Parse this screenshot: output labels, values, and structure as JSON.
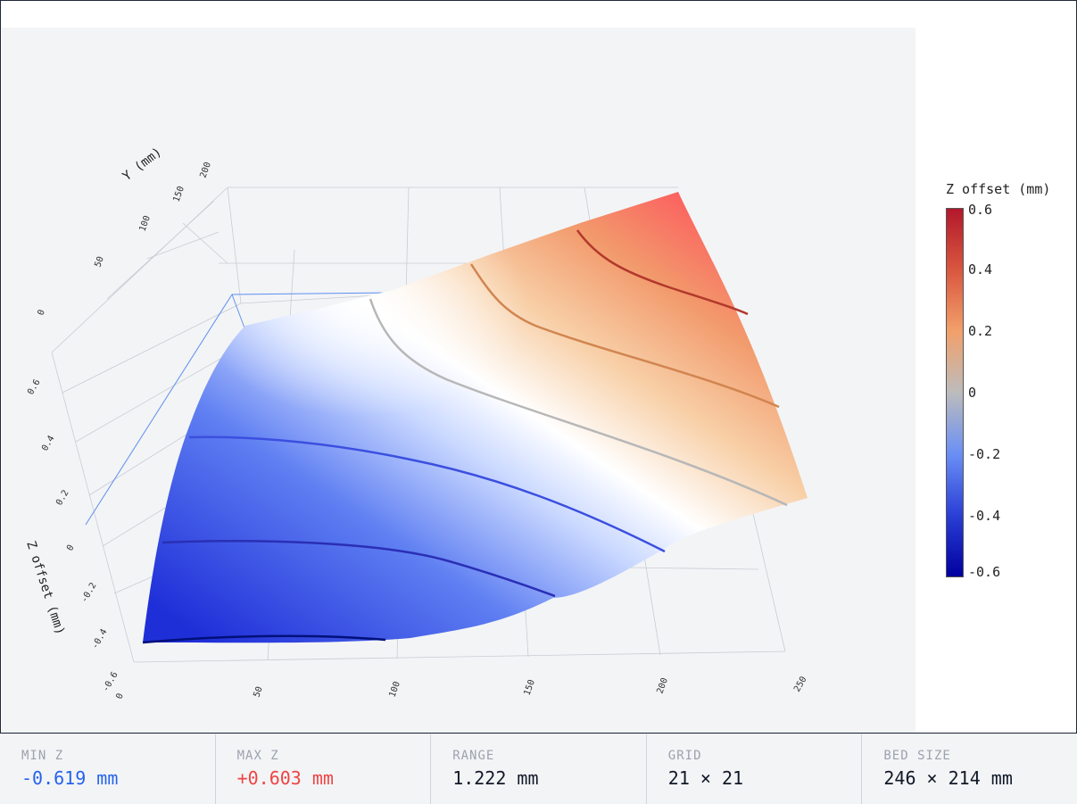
{
  "chart_data": {
    "type": "surface",
    "title": "",
    "xlabel": "",
    "ylabel": "Y (mm)",
    "zlabel": "Z offset (mm)",
    "x_ticks": [
      "0",
      "50",
      "100",
      "150",
      "200",
      "250"
    ],
    "y_ticks": [
      "0",
      "50",
      "100",
      "150",
      "200"
    ],
    "z_ticks": [
      "-0.6",
      "-0.4",
      "-0.2",
      "0",
      "0.2",
      "0.4",
      "0.6"
    ],
    "xlim": [
      0,
      246
    ],
    "ylim": [
      0,
      214
    ],
    "zlim": [
      -0.6,
      0.6
    ],
    "colorscale": [
      "#00009f",
      "#2a3fd6",
      "#6b8ff5",
      "#bcbcbc",
      "#f2a06b",
      "#d9573f",
      "#b2182b"
    ],
    "colorbar": {
      "title": "Z offset (mm)",
      "ticks": [
        "0.6",
        "0.4",
        "0.2",
        "0",
        "-0.2",
        "-0.4",
        "-0.6"
      ]
    },
    "contour_levels": [
      -0.6,
      -0.4,
      -0.2,
      0,
      0.2,
      0.4
    ]
  },
  "stats": [
    {
      "label": "MIN Z",
      "value": "-0.619 mm",
      "kind": "min"
    },
    {
      "label": "MAX Z",
      "value": "+0.603 mm",
      "kind": "max"
    },
    {
      "label": "RANGE",
      "value": "1.222 mm",
      "kind": "plain"
    },
    {
      "label": "GRID",
      "value": "21 × 21",
      "kind": "plain"
    },
    {
      "label": "BED SIZE",
      "value": "246 × 214 mm",
      "kind": "plain"
    }
  ]
}
